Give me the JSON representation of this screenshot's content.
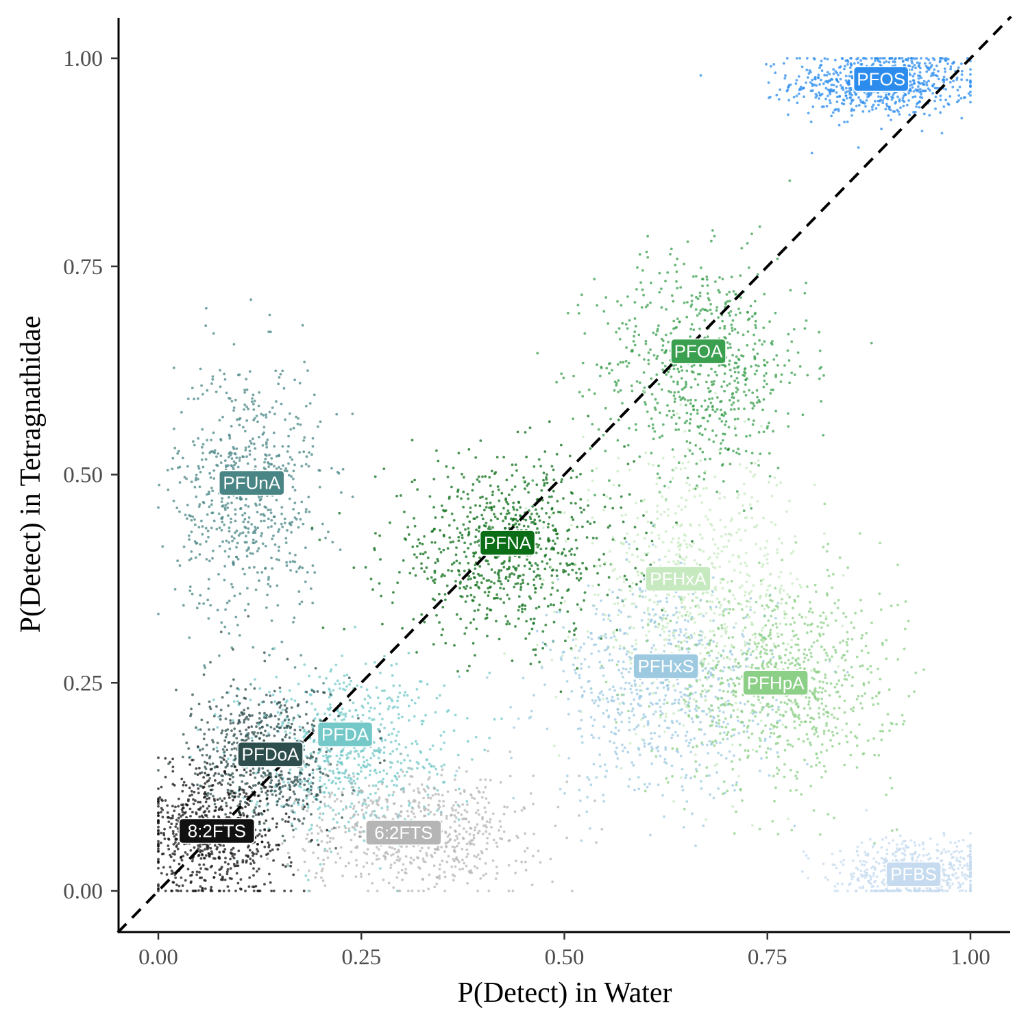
{
  "chart_data": {
    "type": "scatter",
    "title": "",
    "xlabel": "P(Detect) in Water",
    "ylabel": "P(Detect) in Tetragnathidae",
    "xlim": [
      -0.05,
      1.05
    ],
    "ylim": [
      -0.05,
      1.05
    ],
    "x_ticks": [
      0,
      0.25,
      0.5,
      0.75,
      1
    ],
    "y_ticks": [
      0,
      0.25,
      0.5,
      0.75,
      1
    ],
    "x_tick_labels": [
      "0.00",
      "0.25",
      "0.50",
      "0.75",
      "1.00"
    ],
    "y_tick_labels": [
      "0.00",
      "0.25",
      "0.50",
      "0.75",
      "1.00"
    ],
    "grid": false,
    "legend": "none",
    "reference_line": {
      "type": "identity",
      "style": "dashed",
      "color": "#000000"
    },
    "series": [
      {
        "name": "PFOS",
        "color": "#2b8cee",
        "text_color": "#ffffff",
        "cx": 0.89,
        "cy": 0.97,
        "sx": 0.055,
        "sy": 0.02,
        "n": 700,
        "label_x": 0.89,
        "label_y": 0.975
      },
      {
        "name": "PFOA",
        "color": "#3a9f4e",
        "text_color": "#ffffff",
        "cx": 0.67,
        "cy": 0.63,
        "sx": 0.065,
        "sy": 0.065,
        "n": 700,
        "label_x": 0.665,
        "label_y": 0.648
      },
      {
        "name": "PFUnA",
        "color": "#4a8585",
        "text_color": "#ffffff",
        "cx": 0.11,
        "cy": 0.48,
        "sx": 0.045,
        "sy": 0.08,
        "n": 650,
        "label_x": 0.115,
        "label_y": 0.49
      },
      {
        "name": "PFNA",
        "color": "#0b6e17",
        "text_color": "#ffffff",
        "cx": 0.43,
        "cy": 0.41,
        "sx": 0.075,
        "sy": 0.055,
        "n": 800,
        "label_x": 0.43,
        "label_y": 0.418
      },
      {
        "name": "PFHxA",
        "color": "#c7e9c0",
        "text_color": "#ffffff",
        "cx": 0.66,
        "cy": 0.36,
        "sx": 0.07,
        "sy": 0.08,
        "n": 700,
        "label_x": 0.64,
        "label_y": 0.375
      },
      {
        "name": "PFHxS",
        "color": "#9ecae1",
        "text_color": "#ffffff",
        "cx": 0.62,
        "cy": 0.24,
        "sx": 0.07,
        "sy": 0.065,
        "n": 700,
        "label_x": 0.625,
        "label_y": 0.27
      },
      {
        "name": "PFHpA",
        "color": "#8ccf87",
        "text_color": "#ffffff",
        "cx": 0.77,
        "cy": 0.25,
        "sx": 0.07,
        "sy": 0.065,
        "n": 800,
        "label_x": 0.76,
        "label_y": 0.25
      },
      {
        "name": "PFDA",
        "color": "#74c8c8",
        "text_color": "#ffffff",
        "cx": 0.23,
        "cy": 0.17,
        "sx": 0.065,
        "sy": 0.05,
        "n": 700,
        "label_x": 0.23,
        "label_y": 0.188
      },
      {
        "name": "PFDoA",
        "color": "#2e4d4d",
        "text_color": "#ffffff",
        "cx": 0.13,
        "cy": 0.16,
        "sx": 0.045,
        "sy": 0.045,
        "n": 600,
        "label_x": 0.138,
        "label_y": 0.164
      },
      {
        "name": "6:2FTS",
        "color": "#b5b5b5",
        "text_color": "#ffffff",
        "cx": 0.32,
        "cy": 0.07,
        "sx": 0.07,
        "sy": 0.035,
        "n": 650,
        "label_x": 0.302,
        "label_y": 0.07
      },
      {
        "name": "8:2FTS",
        "color": "#111111",
        "text_color": "#ffffff",
        "cx": 0.07,
        "cy": 0.07,
        "sx": 0.045,
        "sy": 0.04,
        "n": 700,
        "label_x": 0.072,
        "label_y": 0.072
      },
      {
        "name": "PFBS",
        "color": "#c6dbef",
        "text_color": "#ffffff",
        "cx": 0.93,
        "cy": 0.02,
        "sx": 0.05,
        "sy": 0.02,
        "n": 600,
        "label_x": 0.93,
        "label_y": 0.02
      }
    ]
  }
}
